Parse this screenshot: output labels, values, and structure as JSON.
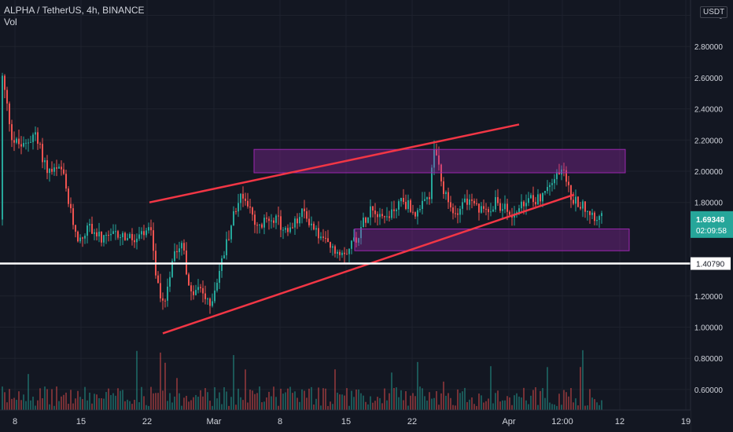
{
  "header": {
    "symbol_line": "ALPHA / TetherUS, 4h, BINANCE",
    "indicator": "Vol"
  },
  "currency_button": "USDT",
  "price_axis": {
    "ticks": [
      {
        "v": 3.0,
        "label": "3"
      },
      {
        "v": 2.8,
        "label": "2.80000"
      },
      {
        "v": 2.6,
        "label": "2.60000"
      },
      {
        "v": 2.4,
        "label": "2.40000"
      },
      {
        "v": 2.2,
        "label": "2.20000"
      },
      {
        "v": 2.0,
        "label": "2.00000"
      },
      {
        "v": 1.8,
        "label": "1.80000"
      },
      {
        "v": 1.2,
        "label": "1.20000"
      },
      {
        "v": 1.0,
        "label": "1.00000"
      },
      {
        "v": 0.8,
        "label": "0.80000"
      },
      {
        "v": 0.6,
        "label": "0.60000"
      }
    ]
  },
  "time_axis": {
    "ticks": [
      "8",
      "15",
      "22",
      "Mar",
      "8",
      "15",
      "22",
      "Apr",
      "12:00",
      "12",
      "19"
    ]
  },
  "last_price": {
    "value": 1.69348,
    "label": "1.69348",
    "countdown": "02:09:58",
    "color": "#26a69a"
  },
  "horizontal_line": {
    "value": 1.4079,
    "label": "1.40790",
    "color": "#ffffff"
  },
  "drawings": {
    "line_color": "#f23645",
    "zone_color": "#9c27b0",
    "zones": [
      {
        "name": "resistance-zone",
        "price_top": 2.14,
        "price_bottom": 1.99
      },
      {
        "name": "support-zone",
        "price_top": 1.63,
        "price_bottom": 1.49
      }
    ]
  },
  "colors": {
    "background": "#131722",
    "up": "#26a69a",
    "down": "#ef5350",
    "grid": "#1e222d",
    "text": "#d1d4dc"
  }
}
